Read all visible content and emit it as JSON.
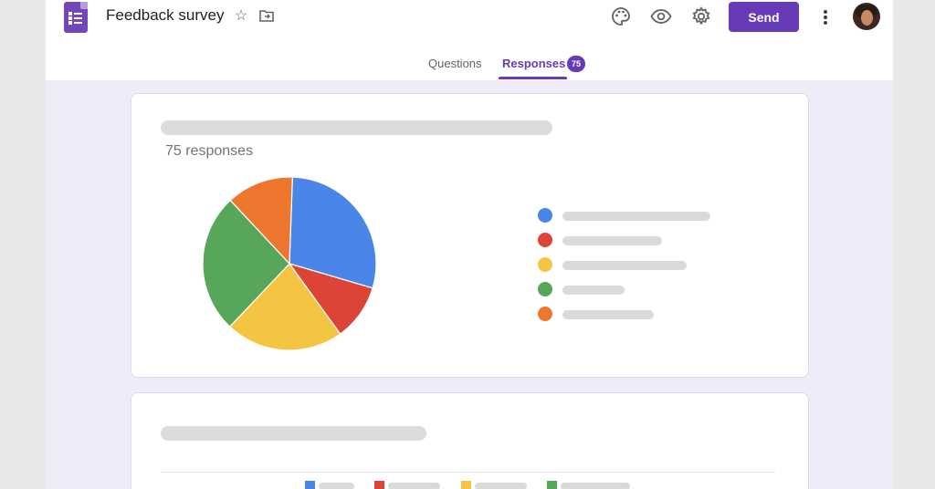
{
  "header": {
    "title": "Feedback survey",
    "send_label": "Send",
    "icons": [
      "forms-logo",
      "star-icon",
      "move-to-folder-icon",
      "palette-icon",
      "eye-icon",
      "gear-icon",
      "more-vert-icon",
      "avatar"
    ]
  },
  "tabs": {
    "questions_label": "Questions",
    "responses_label": "Responses",
    "responses_count": "75",
    "active": "Responses"
  },
  "card1": {
    "responses_text": "75 responses",
    "legend_colors": [
      "#4a86e8",
      "#db4437",
      "#f4c443",
      "#57a65a",
      "#ee7730"
    ]
  },
  "chart_data": {
    "type": "pie",
    "slices": [
      {
        "color": "#4a86e8",
        "value": 29
      },
      {
        "color": "#db4437",
        "value": 10.5
      },
      {
        "color": "#f4c443",
        "value": 22
      },
      {
        "color": "#57a65a",
        "value": 26
      },
      {
        "color": "#ee7730",
        "value": 12.5
      }
    ],
    "start_angle_deg": 2
  },
  "card2": {
    "legend_colors": [
      "#4a86e8",
      "#db4437",
      "#f4c443",
      "#57a65a"
    ]
  },
  "colors": {
    "accent": "#673ab7",
    "background": "#f0ebf8"
  }
}
